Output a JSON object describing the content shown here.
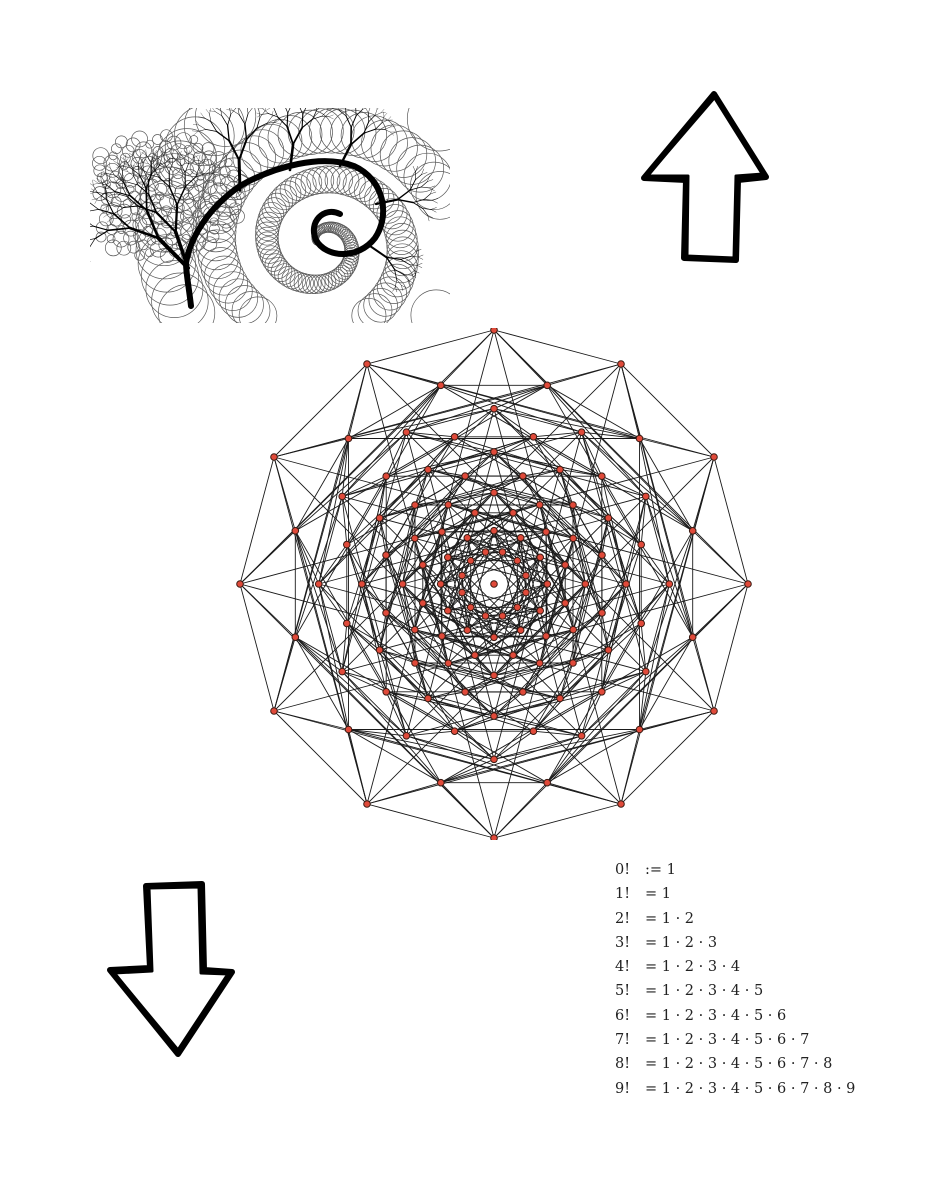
{
  "colors": {
    "ink": "#000000",
    "node_fill": "#e04a3a",
    "node_stroke": "#3a1a12",
    "edge": "#1a1a1a"
  },
  "icons": {
    "fractal": "fractal-tree-spiral-icon",
    "up": "arrow-up-icon",
    "down": "arrow-down-icon",
    "graph": "polytope-graph-icon"
  },
  "graph": {
    "rings": 10,
    "nodes_per_ring": 12
  },
  "factorials": [
    {
      "lhs": "0!",
      "rhs": ":= 1"
    },
    {
      "lhs": "1!",
      "rhs": "= 1"
    },
    {
      "lhs": "2!",
      "rhs": "= 1 · 2"
    },
    {
      "lhs": "3!",
      "rhs": "= 1 · 2 · 3"
    },
    {
      "lhs": "4!",
      "rhs": "= 1 · 2 · 3 · 4"
    },
    {
      "lhs": "5!",
      "rhs": "= 1 · 2 · 3 · 4 · 5"
    },
    {
      "lhs": "6!",
      "rhs": "= 1 · 2 · 3 · 4 · 5 · 6"
    },
    {
      "lhs": "7!",
      "rhs": "= 1 · 2 · 3 · 4 · 5 · 6 · 7"
    },
    {
      "lhs": "8!",
      "rhs": "= 1 · 2 · 3 · 4 · 5 · 6 · 7 · 8"
    },
    {
      "lhs": "9!",
      "rhs": "= 1 · 2 · 3 · 4 · 5 · 6 · 7 · 8 · 9"
    }
  ]
}
